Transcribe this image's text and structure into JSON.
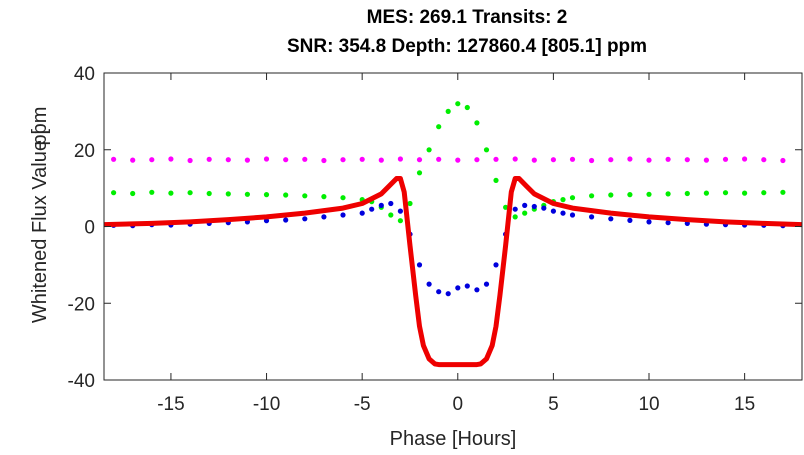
{
  "chart_data": {
    "type": "scatter",
    "title_line1": "MES: 269.1    Transits: 2",
    "title_line2": "SNR: 354.8    Depth: 127860.4 [805.1] ppm",
    "xlabel": "Phase [Hours]",
    "ylabel": "Whitened Flux Value [",
    "ylabel_overlap": "ppm",
    "xlim": [
      -18.5,
      18
    ],
    "ylim": [
      -40,
      40
    ],
    "xticks": [
      -15,
      -10,
      -5,
      0,
      5,
      10,
      15
    ],
    "xtick_labels": [
      "-15",
      "-10",
      "-5",
      "0",
      "5",
      "10",
      "15"
    ],
    "yticks": [
      -40,
      -20,
      0,
      20,
      40
    ],
    "ytick_labels": [
      "-40",
      "-20",
      "0",
      "20",
      "40"
    ],
    "grid": false,
    "colors": {
      "blue_series": "#0000dd",
      "magenta_series": "#ff00ff",
      "green_series": "#00ee00",
      "model_line": "#ee0000",
      "axes": "#262626"
    },
    "series": [
      {
        "color": "#ff00ff",
        "marker": "dot",
        "x": [
          -18,
          -17,
          -16,
          -15,
          -14,
          -13,
          -12,
          -11,
          -10,
          -9,
          -8,
          -7,
          -6,
          -5,
          -4,
          -3,
          -2,
          -1,
          0,
          1,
          2,
          3,
          4,
          5,
          6,
          7,
          8,
          9,
          10,
          11,
          12,
          13,
          14,
          15,
          16,
          17
        ],
        "y": [
          17.5,
          17.3,
          17.4,
          17.6,
          17.2,
          17.5,
          17.4,
          17.3,
          17.6,
          17.4,
          17.5,
          17.2,
          17.4,
          17.5,
          17.3,
          17.6,
          17.4,
          17.5,
          17.3,
          17.4,
          17.5,
          17.6,
          17.3,
          17.4,
          17.5,
          17.2,
          17.4,
          17.6,
          17.3,
          17.5,
          17.4,
          17.3,
          17.5,
          17.6,
          17.4,
          17.2
        ]
      },
      {
        "color": "#00ee00",
        "marker": "dot",
        "x": [
          -18,
          -17,
          -16,
          -15,
          -14,
          -13,
          -12,
          -11,
          -10,
          -9,
          -8,
          -7,
          -6,
          -5,
          -4.5,
          -4,
          -3.5,
          -3,
          -2.5,
          -2,
          -1.5,
          -1,
          -0.5,
          0,
          0.5,
          1,
          1.5,
          2,
          2.5,
          3,
          3.5,
          4,
          4.5,
          5,
          5.5,
          6,
          7,
          8,
          9,
          10,
          11,
          12,
          13,
          14,
          15,
          16,
          17
        ],
        "y": [
          8.8,
          8.6,
          8.9,
          8.7,
          8.8,
          8.6,
          8.5,
          8.4,
          8.3,
          8.2,
          8.0,
          7.8,
          7.5,
          7.0,
          6.5,
          5.0,
          3.0,
          1.5,
          6.0,
          14.0,
          20.0,
          26.0,
          30.0,
          32.0,
          31.0,
          27.0,
          20.0,
          12.0,
          5.0,
          2.5,
          3.5,
          4.5,
          5.5,
          6.5,
          7.0,
          7.5,
          8.0,
          8.2,
          8.3,
          8.4,
          8.5,
          8.6,
          8.7,
          8.8,
          8.7,
          8.8,
          8.9
        ]
      },
      {
        "color": "#0000dd",
        "marker": "dot",
        "x": [
          -18,
          -17,
          -16,
          -15,
          -14,
          -13,
          -12,
          -11,
          -10,
          -9,
          -8,
          -7,
          -6,
          -5,
          -4.5,
          -4,
          -3.5,
          -3,
          -2.5,
          -2,
          -1.5,
          -1,
          -0.5,
          0,
          0.5,
          1,
          1.5,
          2,
          2.5,
          3,
          3.5,
          4,
          4.5,
          5,
          5.5,
          6,
          7,
          8,
          9,
          10,
          11,
          12,
          13,
          14,
          15,
          16,
          17
        ],
        "y": [
          0.3,
          0.2,
          0.5,
          0.4,
          0.6,
          0.8,
          1.0,
          1.2,
          1.5,
          1.7,
          2.0,
          2.5,
          3.0,
          3.5,
          4.5,
          5.5,
          6.0,
          4.0,
          -2.0,
          -10.0,
          -15.0,
          -17.0,
          -17.5,
          -16.0,
          -15.5,
          -16.5,
          -15.0,
          -10.0,
          -2.0,
          4.5,
          5.5,
          5.2,
          4.8,
          4.0,
          3.5,
          3.0,
          2.5,
          2.0,
          1.6,
          1.2,
          1.0,
          0.8,
          0.6,
          0.5,
          0.4,
          0.3,
          0.2
        ]
      },
      {
        "color": "#ee0000",
        "marker": "line",
        "x": [
          -18.5,
          -16,
          -14,
          -12,
          -10,
          -8,
          -6,
          -5,
          -4,
          -3.6,
          -3.2,
          -3.0,
          -2.8,
          -2.5,
          -2.2,
          -2.0,
          -1.8,
          -1.5,
          -1.2,
          -1,
          -0.5,
          0,
          0.5,
          1,
          1.2,
          1.5,
          1.8,
          2.0,
          2.2,
          2.5,
          2.8,
          3.0,
          3.2,
          3.6,
          4,
          5,
          6,
          8,
          10,
          12,
          14,
          16,
          18
        ],
        "y": [
          0.5,
          0.8,
          1.2,
          1.8,
          2.5,
          3.5,
          4.8,
          6.0,
          8.5,
          10.5,
          12.5,
          12.5,
          9.0,
          -5.0,
          -18.0,
          -26.0,
          -31.0,
          -34.5,
          -35.8,
          -36.0,
          -36.0,
          -36.0,
          -36.0,
          -36.0,
          -35.8,
          -34.5,
          -31.0,
          -26.0,
          -18.0,
          -5.0,
          9.0,
          12.5,
          12.5,
          10.5,
          8.5,
          6.0,
          4.8,
          3.5,
          2.5,
          1.8,
          1.2,
          0.8,
          0.5
        ]
      }
    ]
  }
}
